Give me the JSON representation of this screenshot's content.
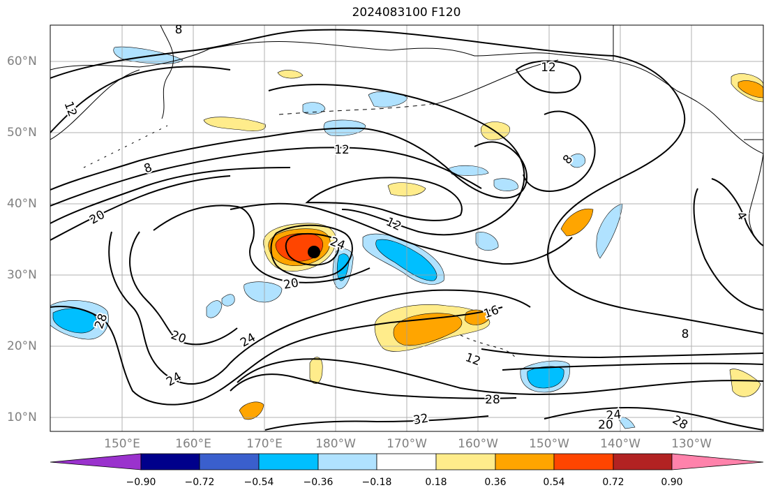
{
  "title": "2024083100 F120",
  "lon_labels": [
    "150°E",
    "160°E",
    "170°E",
    "180°W",
    "170°W",
    "160°W",
    "150°W",
    "140°W",
    "130°W"
  ],
  "lat_labels": [
    "60°N",
    "50°N",
    "40°N",
    "30°N",
    "20°N",
    "10°N"
  ],
  "contour_labels": [
    "8",
    "12",
    "12",
    "12",
    "8",
    "20",
    "12",
    "24",
    "20",
    "20",
    "24",
    "24",
    "28",
    "16",
    "12",
    "28",
    "32",
    "24",
    "20",
    "28",
    "8",
    "4"
  ],
  "colorbar": {
    "ticks": [
      "−0.90",
      "−0.72",
      "−0.54",
      "−0.36",
      "−0.18",
      "0.18",
      "0.36",
      "0.54",
      "0.72",
      "0.90"
    ],
    "colors": [
      "#9a32cd",
      "#00008b",
      "#3a5fcd",
      "#00bfff",
      "#b0e2ff",
      "#ffffff",
      "#ffec8b",
      "#ffa500",
      "#ff4500",
      "#b22222",
      "#ff82ab"
    ]
  },
  "legend_marker": "storm-center-dot"
}
